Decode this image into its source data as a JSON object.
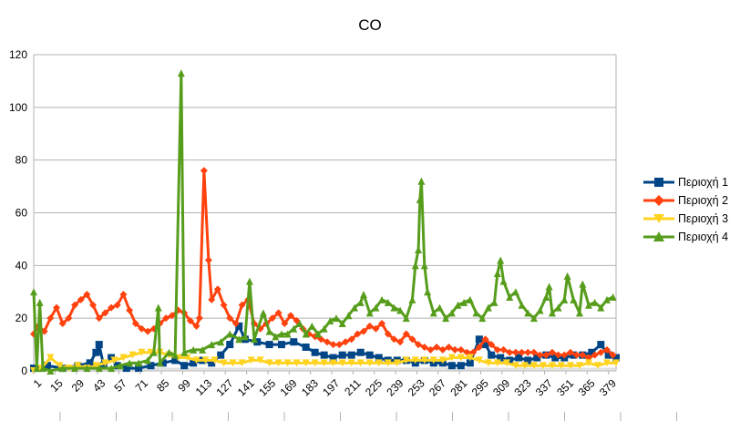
{
  "chart_data": {
    "type": "line",
    "title": "CO",
    "xlabel": "",
    "ylabel": "",
    "ylim": [
      0,
      120
    ],
    "yticks": [
      0,
      20,
      40,
      60,
      80,
      100,
      120
    ],
    "xlim": [
      1,
      384
    ],
    "xticks": [
      1,
      15,
      29,
      43,
      57,
      71,
      85,
      99,
      113,
      127,
      141,
      155,
      169,
      183,
      197,
      211,
      225,
      239,
      253,
      267,
      281,
      295,
      309,
      323,
      337,
      351,
      365,
      379
    ],
    "grid": "horizontal",
    "legend_position": "right",
    "series": [
      {
        "name": "Περιοχή 1",
        "color": "#004586",
        "marker": "square",
        "points": [
          [
            1,
            1
          ],
          [
            10,
            2
          ],
          [
            20,
            1
          ],
          [
            30,
            2
          ],
          [
            38,
            3
          ],
          [
            42,
            7
          ],
          [
            44,
            10
          ],
          [
            47,
            2
          ],
          [
            52,
            5
          ],
          [
            56,
            2
          ],
          [
            62,
            1
          ],
          [
            70,
            1
          ],
          [
            78,
            2
          ],
          [
            86,
            3
          ],
          [
            94,
            4
          ],
          [
            100,
            2
          ],
          [
            106,
            3
          ],
          [
            112,
            4
          ],
          [
            118,
            3
          ],
          [
            124,
            6
          ],
          [
            130,
            10
          ],
          [
            136,
            17
          ],
          [
            140,
            12
          ],
          [
            148,
            11
          ],
          [
            156,
            10
          ],
          [
            164,
            10
          ],
          [
            172,
            11
          ],
          [
            180,
            9
          ],
          [
            186,
            7
          ],
          [
            192,
            6
          ],
          [
            198,
            5
          ],
          [
            204,
            6
          ],
          [
            210,
            6
          ],
          [
            216,
            7
          ],
          [
            222,
            6
          ],
          [
            228,
            5
          ],
          [
            234,
            4
          ],
          [
            240,
            4
          ],
          [
            246,
            4
          ],
          [
            252,
            3
          ],
          [
            258,
            4
          ],
          [
            264,
            3
          ],
          [
            270,
            3
          ],
          [
            276,
            2
          ],
          [
            282,
            2
          ],
          [
            288,
            3
          ],
          [
            294,
            12
          ],
          [
            298,
            10
          ],
          [
            302,
            6
          ],
          [
            308,
            5
          ],
          [
            314,
            4
          ],
          [
            320,
            5
          ],
          [
            326,
            4
          ],
          [
            332,
            5
          ],
          [
            338,
            6
          ],
          [
            344,
            5
          ],
          [
            350,
            5
          ],
          [
            356,
            6
          ],
          [
            362,
            6
          ],
          [
            368,
            7
          ],
          [
            374,
            10
          ],
          [
            379,
            6
          ],
          [
            384,
            5
          ]
        ]
      },
      {
        "name": "Περιοχή 2",
        "color": "#ff420e",
        "marker": "diamond",
        "points": [
          [
            1,
            14
          ],
          [
            4,
            17
          ],
          [
            8,
            15
          ],
          [
            12,
            20
          ],
          [
            16,
            24
          ],
          [
            20,
            18
          ],
          [
            24,
            20
          ],
          [
            28,
            25
          ],
          [
            32,
            27
          ],
          [
            36,
            29
          ],
          [
            40,
            25
          ],
          [
            44,
            20
          ],
          [
            48,
            22
          ],
          [
            52,
            24
          ],
          [
            56,
            25
          ],
          [
            60,
            29
          ],
          [
            64,
            23
          ],
          [
            68,
            18
          ],
          [
            72,
            16
          ],
          [
            76,
            15
          ],
          [
            80,
            16
          ],
          [
            84,
            18
          ],
          [
            88,
            20
          ],
          [
            92,
            21
          ],
          [
            96,
            23
          ],
          [
            100,
            22
          ],
          [
            104,
            19
          ],
          [
            108,
            17
          ],
          [
            110,
            20
          ],
          [
            113,
            76
          ],
          [
            116,
            42
          ],
          [
            118,
            27
          ],
          [
            122,
            31
          ],
          [
            126,
            25
          ],
          [
            130,
            20
          ],
          [
            134,
            18
          ],
          [
            138,
            25
          ],
          [
            142,
            27
          ],
          [
            146,
            18
          ],
          [
            150,
            16
          ],
          [
            154,
            18
          ],
          [
            158,
            20
          ],
          [
            162,
            22
          ],
          [
            166,
            18
          ],
          [
            170,
            21
          ],
          [
            174,
            19
          ],
          [
            178,
            16
          ],
          [
            182,
            14
          ],
          [
            186,
            13
          ],
          [
            190,
            12
          ],
          [
            194,
            11
          ],
          [
            198,
            10
          ],
          [
            202,
            10
          ],
          [
            206,
            11
          ],
          [
            210,
            12
          ],
          [
            214,
            14
          ],
          [
            218,
            15
          ],
          [
            222,
            17
          ],
          [
            226,
            16
          ],
          [
            230,
            18
          ],
          [
            234,
            14
          ],
          [
            238,
            12
          ],
          [
            242,
            11
          ],
          [
            246,
            14
          ],
          [
            250,
            12
          ],
          [
            254,
            10
          ],
          [
            258,
            9
          ],
          [
            262,
            8
          ],
          [
            266,
            9
          ],
          [
            270,
            8
          ],
          [
            274,
            9
          ],
          [
            278,
            8
          ],
          [
            282,
            8
          ],
          [
            286,
            7
          ],
          [
            290,
            7
          ],
          [
            294,
            9
          ],
          [
            298,
            12
          ],
          [
            302,
            10
          ],
          [
            306,
            8
          ],
          [
            310,
            8
          ],
          [
            314,
            7
          ],
          [
            318,
            7
          ],
          [
            322,
            7
          ],
          [
            326,
            7
          ],
          [
            330,
            7
          ],
          [
            334,
            6
          ],
          [
            338,
            6
          ],
          [
            342,
            7
          ],
          [
            346,
            6
          ],
          [
            350,
            6
          ],
          [
            354,
            7
          ],
          [
            358,
            6
          ],
          [
            362,
            6
          ],
          [
            366,
            5
          ],
          [
            370,
            6
          ],
          [
            374,
            7
          ],
          [
            378,
            8
          ],
          [
            382,
            6
          ]
        ]
      },
      {
        "name": "Περιοχή 3",
        "color": "#ffd320",
        "marker": "triangle-down",
        "points": [
          [
            1,
            0
          ],
          [
            6,
            1
          ],
          [
            12,
            5
          ],
          [
            18,
            2
          ],
          [
            24,
            1
          ],
          [
            30,
            2
          ],
          [
            36,
            1
          ],
          [
            42,
            2
          ],
          [
            48,
            3
          ],
          [
            54,
            4
          ],
          [
            60,
            5
          ],
          [
            66,
            6
          ],
          [
            72,
            7
          ],
          [
            78,
            7
          ],
          [
            84,
            7
          ],
          [
            90,
            6
          ],
          [
            96,
            5
          ],
          [
            102,
            5
          ],
          [
            108,
            4
          ],
          [
            114,
            4
          ],
          [
            120,
            4
          ],
          [
            126,
            3
          ],
          [
            132,
            3
          ],
          [
            138,
            3
          ],
          [
            144,
            4
          ],
          [
            150,
            4
          ],
          [
            156,
            3
          ],
          [
            162,
            3
          ],
          [
            168,
            3
          ],
          [
            174,
            3
          ],
          [
            180,
            3
          ],
          [
            186,
            3
          ],
          [
            192,
            3
          ],
          [
            198,
            3
          ],
          [
            204,
            3
          ],
          [
            210,
            3
          ],
          [
            216,
            3
          ],
          [
            222,
            3
          ],
          [
            228,
            3
          ],
          [
            234,
            3
          ],
          [
            240,
            3
          ],
          [
            246,
            4
          ],
          [
            252,
            4
          ],
          [
            258,
            4
          ],
          [
            264,
            4
          ],
          [
            270,
            4
          ],
          [
            276,
            5
          ],
          [
            282,
            5
          ],
          [
            288,
            5
          ],
          [
            294,
            4
          ],
          [
            300,
            3
          ],
          [
            306,
            3
          ],
          [
            312,
            3
          ],
          [
            318,
            2
          ],
          [
            324,
            2
          ],
          [
            330,
            2
          ],
          [
            336,
            2
          ],
          [
            342,
            2
          ],
          [
            348,
            2
          ],
          [
            354,
            2
          ],
          [
            360,
            2
          ],
          [
            366,
            3
          ],
          [
            372,
            2
          ],
          [
            378,
            3
          ],
          [
            384,
            3
          ]
        ]
      },
      {
        "name": "Περιοχή 4",
        "color": "#579d1c",
        "marker": "triangle-up",
        "points": [
          [
            1,
            30
          ],
          [
            3,
            1
          ],
          [
            5,
            26
          ],
          [
            7,
            1
          ],
          [
            12,
            0
          ],
          [
            20,
            1
          ],
          [
            28,
            1
          ],
          [
            36,
            1
          ],
          [
            44,
            1
          ],
          [
            52,
            1
          ],
          [
            58,
            2
          ],
          [
            64,
            3
          ],
          [
            70,
            3
          ],
          [
            76,
            4
          ],
          [
            80,
            7
          ],
          [
            83,
            24
          ],
          [
            84,
            3
          ],
          [
            90,
            7
          ],
          [
            94,
            6
          ],
          [
            98,
            113
          ],
          [
            100,
            7
          ],
          [
            106,
            8
          ],
          [
            112,
            8
          ],
          [
            118,
            10
          ],
          [
            124,
            11
          ],
          [
            130,
            14
          ],
          [
            136,
            12
          ],
          [
            140,
            13
          ],
          [
            143,
            34
          ],
          [
            146,
            12
          ],
          [
            152,
            22
          ],
          [
            156,
            15
          ],
          [
            160,
            13
          ],
          [
            164,
            14
          ],
          [
            168,
            14
          ],
          [
            172,
            16
          ],
          [
            176,
            18
          ],
          [
            180,
            14
          ],
          [
            184,
            17
          ],
          [
            188,
            14
          ],
          [
            192,
            16
          ],
          [
            196,
            19
          ],
          [
            200,
            20
          ],
          [
            204,
            18
          ],
          [
            208,
            21
          ],
          [
            212,
            24
          ],
          [
            216,
            26
          ],
          [
            218,
            29
          ],
          [
            222,
            22
          ],
          [
            226,
            24
          ],
          [
            230,
            27
          ],
          [
            234,
            26
          ],
          [
            238,
            24
          ],
          [
            242,
            23
          ],
          [
            246,
            20
          ],
          [
            250,
            27
          ],
          [
            252,
            40
          ],
          [
            254,
            46
          ],
          [
            255,
            65
          ],
          [
            256,
            72
          ],
          [
            258,
            40
          ],
          [
            260,
            30
          ],
          [
            264,
            22
          ],
          [
            268,
            24
          ],
          [
            272,
            20
          ],
          [
            276,
            22
          ],
          [
            280,
            25
          ],
          [
            284,
            26
          ],
          [
            288,
            27
          ],
          [
            292,
            22
          ],
          [
            296,
            20
          ],
          [
            300,
            24
          ],
          [
            304,
            26
          ],
          [
            306,
            37
          ],
          [
            308,
            42
          ],
          [
            310,
            34
          ],
          [
            314,
            28
          ],
          [
            318,
            30
          ],
          [
            322,
            25
          ],
          [
            326,
            22
          ],
          [
            330,
            20
          ],
          [
            334,
            23
          ],
          [
            338,
            28
          ],
          [
            340,
            32
          ],
          [
            342,
            22
          ],
          [
            346,
            24
          ],
          [
            350,
            27
          ],
          [
            352,
            36
          ],
          [
            356,
            27
          ],
          [
            360,
            22
          ],
          [
            362,
            33
          ],
          [
            366,
            25
          ],
          [
            370,
            26
          ],
          [
            374,
            24
          ],
          [
            378,
            27
          ],
          [
            382,
            28
          ]
        ]
      }
    ]
  }
}
